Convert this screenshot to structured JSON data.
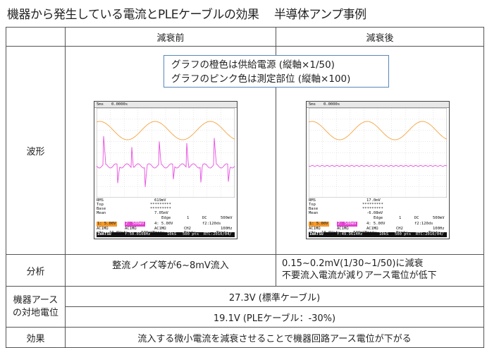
{
  "title": "機器から発生している電流とPLEケーブルの効果　 半導体アンプ事例",
  "header": {
    "before": "減衰前",
    "after": "減衰後"
  },
  "rows": {
    "waveform_label": "波形",
    "analysis_label": "分析",
    "earth_label_1": "機器アース",
    "earth_label_2": "の対地電位",
    "effect_label": "効果"
  },
  "note": {
    "line1": "グラフの橙色は供給電源 (縦軸×1/50)",
    "line2": "グラフのピンク色は測定部位 (縦軸×100)"
  },
  "analysis": {
    "before": "整流ノイズ等が6~8mV流入",
    "after_line1": "0.15~0.2mV(1/30~1/50)に減衰",
    "after_line2": "不要流入電流が減りアース電位が低下"
  },
  "earth_potential": {
    "standard": "27.3V (標準ケーブル)",
    "ple": "19.1V (PLEケーブル：-30%)"
  },
  "effect": "流入する微小電流を減衰させることで機器回路アース電位が下がる",
  "scope_common": {
    "timebase": "5ms",
    "offset": "0.0000s",
    "trig_mode": "Edge",
    "trig_ch": "1",
    "coupling": "DC",
    "trig_level": "500mV",
    "ch1": "1: 5.00V",
    "ch2": "2: 500mV",
    "ch1b": "4: 5.00V",
    "f": "f2:120ds",
    "row1a": "AC1MΩ",
    "row1b": "AC1MΩ",
    "row1c": "AC1MΩ",
    "row1d": "CH2",
    "row1e": "100Hz",
    "row2a": "ofs",
    "row2b": "10.0Vofs",
    "row2c": "-500mVEmpty",
    "row2d": "Empty",
    "row2e": "Empty",
    "brand": "IWATSU",
    "samples": "10kS",
    "pts": "500 pts",
    "rtc": "RTC:2010/04/"
  },
  "scope_before": {
    "rms": "RMS",
    "top": "Top",
    "base": "Base",
    "mean": "Mean",
    "rms_val": "619mV",
    "top_val": "*********",
    "base_val": "*********",
    "mean_val": "7.05mV",
    "freq": "f:50.0108Hz"
  },
  "scope_after": {
    "rms": "RMS",
    "top": "Top",
    "base": "Base",
    "mean": "Mean",
    "rms_val": "17.0mV",
    "top_val": "*********",
    "base_val": "*********",
    "mean_val": "-6.08mV",
    "freq": "f:49.9614Hz"
  },
  "colors": {
    "supply": "#f4a340",
    "measured": "#e74fe0",
    "grid": "#b8c8b8"
  }
}
